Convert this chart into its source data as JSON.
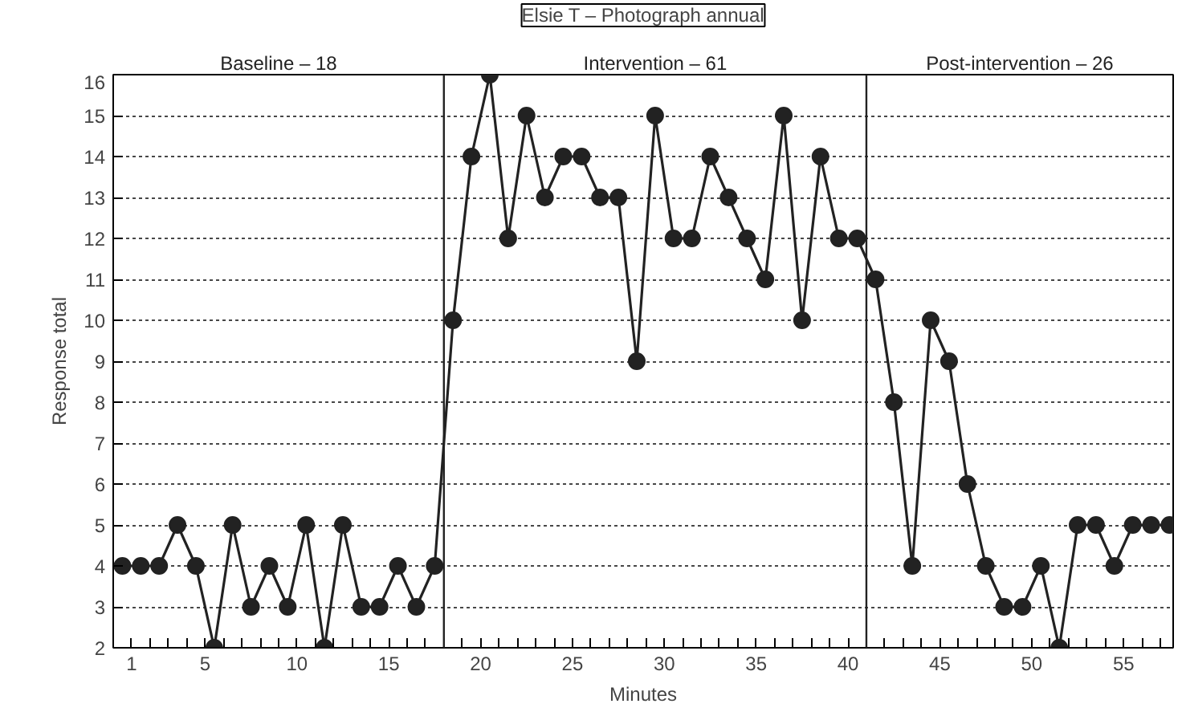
{
  "chart_data": {
    "type": "line",
    "title": "Elsie T – Photograph annual",
    "xlabel": "Minutes",
    "ylabel": "Response total",
    "x": [
      0.5,
      1.5,
      2.5,
      3.5,
      4.5,
      5.5,
      6.5,
      7.5,
      8.5,
      9.5,
      10.5,
      11.5,
      12.5,
      13.5,
      14.5,
      15.5,
      16.5,
      17.5,
      18.5,
      19.5,
      20.5,
      21.5,
      22.5,
      23.5,
      24.5,
      25.5,
      26.5,
      27.5,
      28.5,
      29.5,
      30.5,
      31.5,
      32.5,
      33.5,
      34.5,
      35.5,
      36.5,
      37.5,
      38.5,
      39.5,
      40.5,
      41.5,
      42.5,
      43.5,
      44.5,
      45.5,
      46.5,
      47.5,
      48.5,
      49.5,
      50.5,
      51.5,
      52.5,
      53.5,
      54.5,
      55.5,
      56.5,
      57.5
    ],
    "series": [
      {
        "color": "#222222",
        "values": [
          4,
          4,
          4,
          5,
          4,
          2,
          5,
          3,
          4,
          3,
          5,
          2,
          5,
          3,
          3,
          4,
          3,
          4,
          10,
          14,
          16,
          12,
          15,
          13,
          14,
          14,
          13,
          13,
          9,
          15,
          12,
          12,
          14,
          13,
          12,
          11,
          15,
          10,
          14,
          12,
          12,
          11,
          8,
          4,
          10,
          9,
          6,
          4,
          3,
          3,
          4,
          2,
          5,
          5,
          4,
          5,
          5,
          5
        ]
      }
    ],
    "xlim": [
      0,
      57.7
    ],
    "ylim": [
      2,
      16
    ],
    "xticks": [
      1,
      {
        "value": 2,
        "label": null
      },
      {
        "value": 3,
        "label": null
      },
      {
        "value": 4,
        "label": null
      },
      5,
      {
        "value": 6,
        "label": null
      },
      {
        "value": 7,
        "label": null
      },
      {
        "value": 8,
        "label": null
      },
      {
        "value": 9,
        "label": null
      },
      10,
      {
        "value": 11,
        "label": null
      },
      {
        "value": 12,
        "label": null
      },
      {
        "value": 13,
        "label": null
      },
      {
        "value": 14,
        "label": null
      },
      15,
      {
        "value": 16,
        "label": null
      },
      {
        "value": 17,
        "label": null
      },
      {
        "value": 18,
        "label": null
      },
      {
        "value": 19,
        "label": null
      },
      20,
      {
        "value": 21,
        "label": null
      },
      {
        "value": 22,
        "label": null
      },
      {
        "value": 23,
        "label": null
      },
      {
        "value": 24,
        "label": null
      },
      25,
      {
        "value": 26,
        "label": null
      },
      {
        "value": 27,
        "label": null
      },
      {
        "value": 28,
        "label": null
      },
      {
        "value": 29,
        "label": null
      },
      30,
      {
        "value": 31,
        "label": null
      },
      {
        "value": 32,
        "label": null
      },
      {
        "value": 33,
        "label": null
      },
      {
        "value": 34,
        "label": null
      },
      35,
      {
        "value": 36,
        "label": null
      },
      {
        "value": 37,
        "label": null
      },
      {
        "value": 38,
        "label": null
      },
      {
        "value": 39,
        "label": null
      },
      40,
      {
        "value": 41,
        "label": null
      },
      {
        "value": 42,
        "label": null
      },
      {
        "value": 43,
        "label": null
      },
      {
        "value": 44,
        "label": null
      },
      45,
      {
        "value": 46,
        "label": null
      },
      {
        "value": 47,
        "label": null
      },
      {
        "value": 48,
        "label": null
      },
      {
        "value": 49,
        "label": null
      },
      50,
      {
        "value": 51,
        "label": null
      },
      {
        "value": 52,
        "label": null
      },
      {
        "value": 53,
        "label": null
      },
      {
        "value": 54,
        "label": null
      },
      55,
      {
        "value": 56,
        "label": null
      },
      {
        "value": 57,
        "label": null
      }
    ],
    "yticks": [
      2,
      3,
      4,
      5,
      6,
      7,
      8,
      9,
      10,
      11,
      12,
      13,
      14,
      15,
      16
    ],
    "grid": "y",
    "marker": "circle",
    "line_style": "solid",
    "ref_lines": [
      {
        "axis": "x",
        "value": 18
      },
      {
        "axis": "x",
        "value": 41
      }
    ],
    "annotations": [
      "Baseline – 18",
      "Intervention – 61",
      "Post-intervention – 26"
    ]
  }
}
